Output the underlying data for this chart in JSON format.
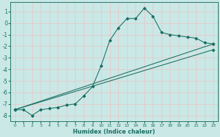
{
  "xlabel": "Humidex (Indice chaleur)",
  "xlim": [
    -0.5,
    23.5
  ],
  "ylim": [
    -8.5,
    1.8
  ],
  "xticks": [
    0,
    1,
    2,
    3,
    4,
    5,
    6,
    7,
    8,
    9,
    10,
    11,
    12,
    13,
    14,
    15,
    16,
    17,
    18,
    19,
    20,
    21,
    22,
    23
  ],
  "yticks": [
    1,
    0,
    -1,
    -2,
    -3,
    -4,
    -5,
    -6,
    -7,
    -8
  ],
  "bg_color": "#c9e8e6",
  "grid_color": "#e8c8c8",
  "line_color": "#1a6e62",
  "line1_x": [
    0,
    1,
    2,
    3,
    4,
    5,
    6,
    7,
    8,
    9,
    10,
    11,
    12,
    13,
    14,
    15,
    16,
    17,
    18,
    19,
    20,
    21,
    22,
    23
  ],
  "line1_y": [
    -7.5,
    -7.5,
    -8.0,
    -7.5,
    -7.4,
    -7.3,
    -7.1,
    -7.0,
    -6.3,
    -5.5,
    -3.7,
    -1.5,
    -0.4,
    0.4,
    0.4,
    1.3,
    0.6,
    -0.8,
    -1.0,
    -1.1,
    -1.2,
    -1.3,
    -1.7,
    -1.8
  ],
  "line2_x": [
    0,
    23
  ],
  "line2_y": [
    -7.5,
    -1.8
  ],
  "line3_x": [
    0,
    23
  ],
  "line3_y": [
    -7.5,
    -2.3
  ]
}
